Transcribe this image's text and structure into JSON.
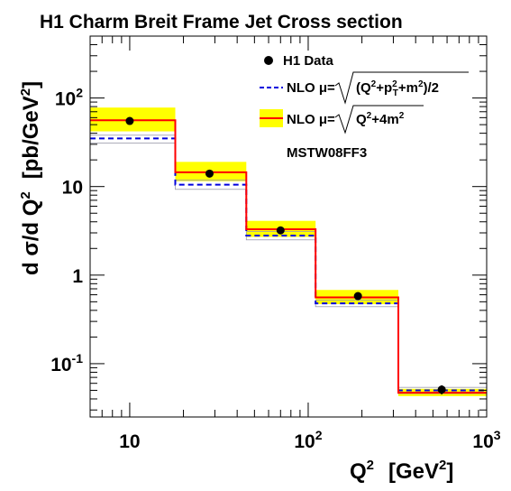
{
  "chart_data": {
    "type": "line",
    "title": "H1 Charm Breit Frame Jet Cross section",
    "xlabel": "Q",
    "xlabel_sup": "2",
    "xunit": "[GeV",
    "xunit_sup": "2",
    "xunit_close": "]",
    "ylabel": "d σ/d Q",
    "ylabel_sup": "2",
    "yunit": "[pb/GeV",
    "yunit_sup": "2",
    "yunit_close": "]",
    "xscale": "log",
    "yscale": "log",
    "xlim": [
      6,
      1000
    ],
    "ylim": [
      0.025,
      500
    ],
    "x_ticks": [
      {
        "value": 10,
        "base": "10",
        "sup": ""
      },
      {
        "value": 100,
        "base": "10",
        "sup": "2"
      },
      {
        "value": 1000,
        "base": "10",
        "sup": "3"
      }
    ],
    "y_ticks": [
      {
        "value": 0.1,
        "base": "10",
        "sup": "-1"
      },
      {
        "value": 1,
        "base": "1",
        "sup": ""
      },
      {
        "value": 10,
        "base": "10",
        "sup": ""
      },
      {
        "value": 100,
        "base": "10",
        "sup": "2"
      }
    ],
    "bin_edges": [
      6,
      18,
      45,
      110,
      320,
      1000
    ],
    "series": [
      {
        "name": "H1 Data",
        "kind": "points",
        "x": [
          10,
          28,
          70,
          190,
          560
        ],
        "y": [
          55,
          14,
          3.2,
          0.58,
          0.051
        ],
        "yerr_low": [
          4,
          1,
          0.25,
          0.05,
          0.006
        ],
        "yerr_high": [
          4,
          1,
          0.25,
          0.05,
          0.006
        ],
        "color": "#000000"
      },
      {
        "name": "NLO μ",
        "kind": "histogram",
        "style": "dashed",
        "values": [
          35,
          10.5,
          2.8,
          0.48,
          0.05
        ],
        "band_low": [
          31,
          9.3,
          2.5,
          0.44,
          0.046
        ],
        "band_high": [
          38,
          11.8,
          3.1,
          0.52,
          0.054
        ],
        "color": "#0000dd",
        "band_color": "#9999aa"
      },
      {
        "name": "NLO μ",
        "kind": "histogram",
        "style": "solid",
        "values": [
          56,
          14.5,
          3.3,
          0.56,
          0.047
        ],
        "band_low": [
          42,
          11.5,
          2.7,
          0.47,
          0.043
        ],
        "band_high": [
          78,
          19,
          4.1,
          0.68,
          0.052
        ],
        "color": "#ff0000",
        "band_color": "#ffff00"
      }
    ],
    "legend": {
      "position": "top-right",
      "items": [
        {
          "marker": "dot",
          "label": "H1 Data"
        },
        {
          "marker": "dash",
          "label": "NLO μ=",
          "formula": "(Q²+p²T+m²)/2"
        },
        {
          "marker": "band",
          "label": "NLO μ=",
          "formula": "Q²+4m²"
        }
      ],
      "note": "MSTW08FF3"
    }
  }
}
